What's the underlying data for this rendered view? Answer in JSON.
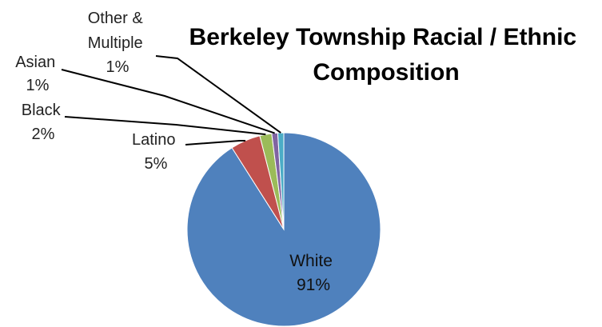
{
  "chart_data": {
    "type": "pie",
    "title": "Berkeley Township Racial / Ethnic Composition",
    "title_lines": [
      "Berkeley Township Racial / Ethnic",
      "Composition"
    ],
    "legend": "none",
    "slices": [
      {
        "name": "White",
        "value": 91,
        "value_label": "91%",
        "color": "#4F81BD"
      },
      {
        "name": "Latino",
        "value": 5,
        "value_label": "5%",
        "color": "#C0504D"
      },
      {
        "name": "Black",
        "value": 2,
        "value_label": "2%",
        "color": "#9BBB59"
      },
      {
        "name": "Asian",
        "value": 1,
        "value_label": "1%",
        "color": "#8064A2"
      },
      {
        "name": "Other & Multiple",
        "name_lines": [
          "Other &",
          "Multiple"
        ],
        "value": 1,
        "value_label": "1%",
        "color": "#4BACC6"
      }
    ]
  }
}
